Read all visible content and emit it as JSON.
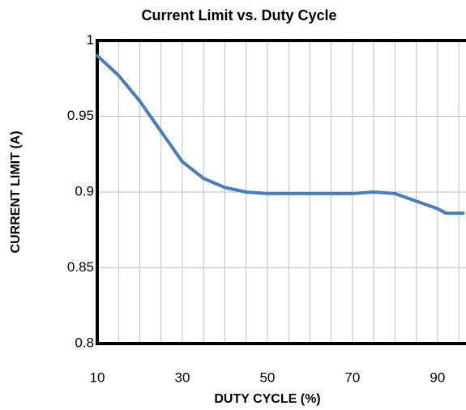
{
  "chart_data": {
    "type": "line",
    "title": "Current Limit vs.  Duty Cycle",
    "x_label": "DUTY CYCLE (%)",
    "y_label": "CURRENT LIMIT (A)",
    "x": [
      10,
      15,
      20,
      25,
      30,
      35,
      40,
      45,
      50,
      55,
      60,
      65,
      70,
      75,
      80,
      85,
      90,
      92,
      96
    ],
    "series": [
      {
        "name": "Current Limit",
        "color": "#4a7ebb",
        "values": [
          0.99,
          0.977,
          0.96,
          0.94,
          0.92,
          0.909,
          0.903,
          0.9,
          0.899,
          0.899,
          0.899,
          0.899,
          0.899,
          0.9,
          0.899,
          0.894,
          0.889,
          0.886,
          0.886
        ]
      }
    ],
    "xlim": [
      10,
      96.7
    ],
    "xticks": [
      10,
      30,
      50,
      70,
      90
    ],
    "xgrid": [
      15,
      20,
      25,
      30,
      35,
      40,
      45,
      50,
      55,
      60,
      65,
      70,
      75,
      80,
      85,
      90,
      95
    ],
    "ylim": [
      0.8,
      1
    ],
    "yticks": [
      0.8,
      0.85,
      0.9,
      0.95,
      1
    ],
    "grid": true
  }
}
